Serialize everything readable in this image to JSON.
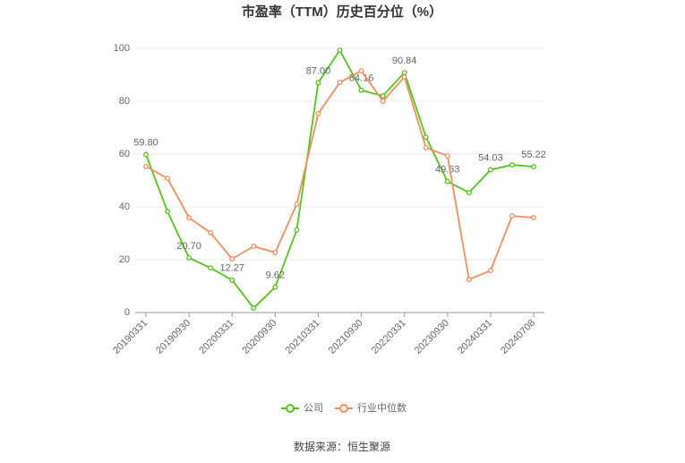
{
  "chart_data": {
    "type": "line",
    "title": "市盈率（TTM）历史百分位（%）",
    "source": "数据来源：恒生聚源",
    "categories": [
      "20190331",
      null,
      "20190930",
      null,
      "20200331",
      null,
      "20200930",
      null,
      "20210331",
      null,
      "20210930",
      null,
      "20220331",
      null,
      "20230930",
      null,
      "20240331",
      null,
      "20240708"
    ],
    "series": [
      {
        "name": "公司",
        "color": "#52c41a",
        "values": [
          59.8,
          38.3,
          20.7,
          16.9,
          12.27,
          1.7,
          9.62,
          31.2,
          87.0,
          99.3,
          84.16,
          82.0,
          90.84,
          66.4,
          49.63,
          45.4,
          54.03,
          55.9,
          55.22
        ],
        "value_labels": [
          "59.80",
          null,
          "20.70",
          null,
          "12.27",
          null,
          "9.62",
          null,
          "87.00",
          null,
          "84.16",
          null,
          "90.84",
          null,
          "49.63",
          null,
          "54.03",
          null,
          "55.22"
        ]
      },
      {
        "name": "行业中位数",
        "color": "#f28e5c",
        "values": [
          55.3,
          50.8,
          35.9,
          30.2,
          20.3,
          25.1,
          22.7,
          41.0,
          75.3,
          87.1,
          91.5,
          80.0,
          89.2,
          62.4,
          59.3,
          12.5,
          15.9,
          36.6,
          35.9
        ]
      }
    ],
    "ylim": [
      0,
      100
    ],
    "yticks": [
      0,
      20,
      40,
      60,
      80,
      100
    ],
    "grid": true
  }
}
